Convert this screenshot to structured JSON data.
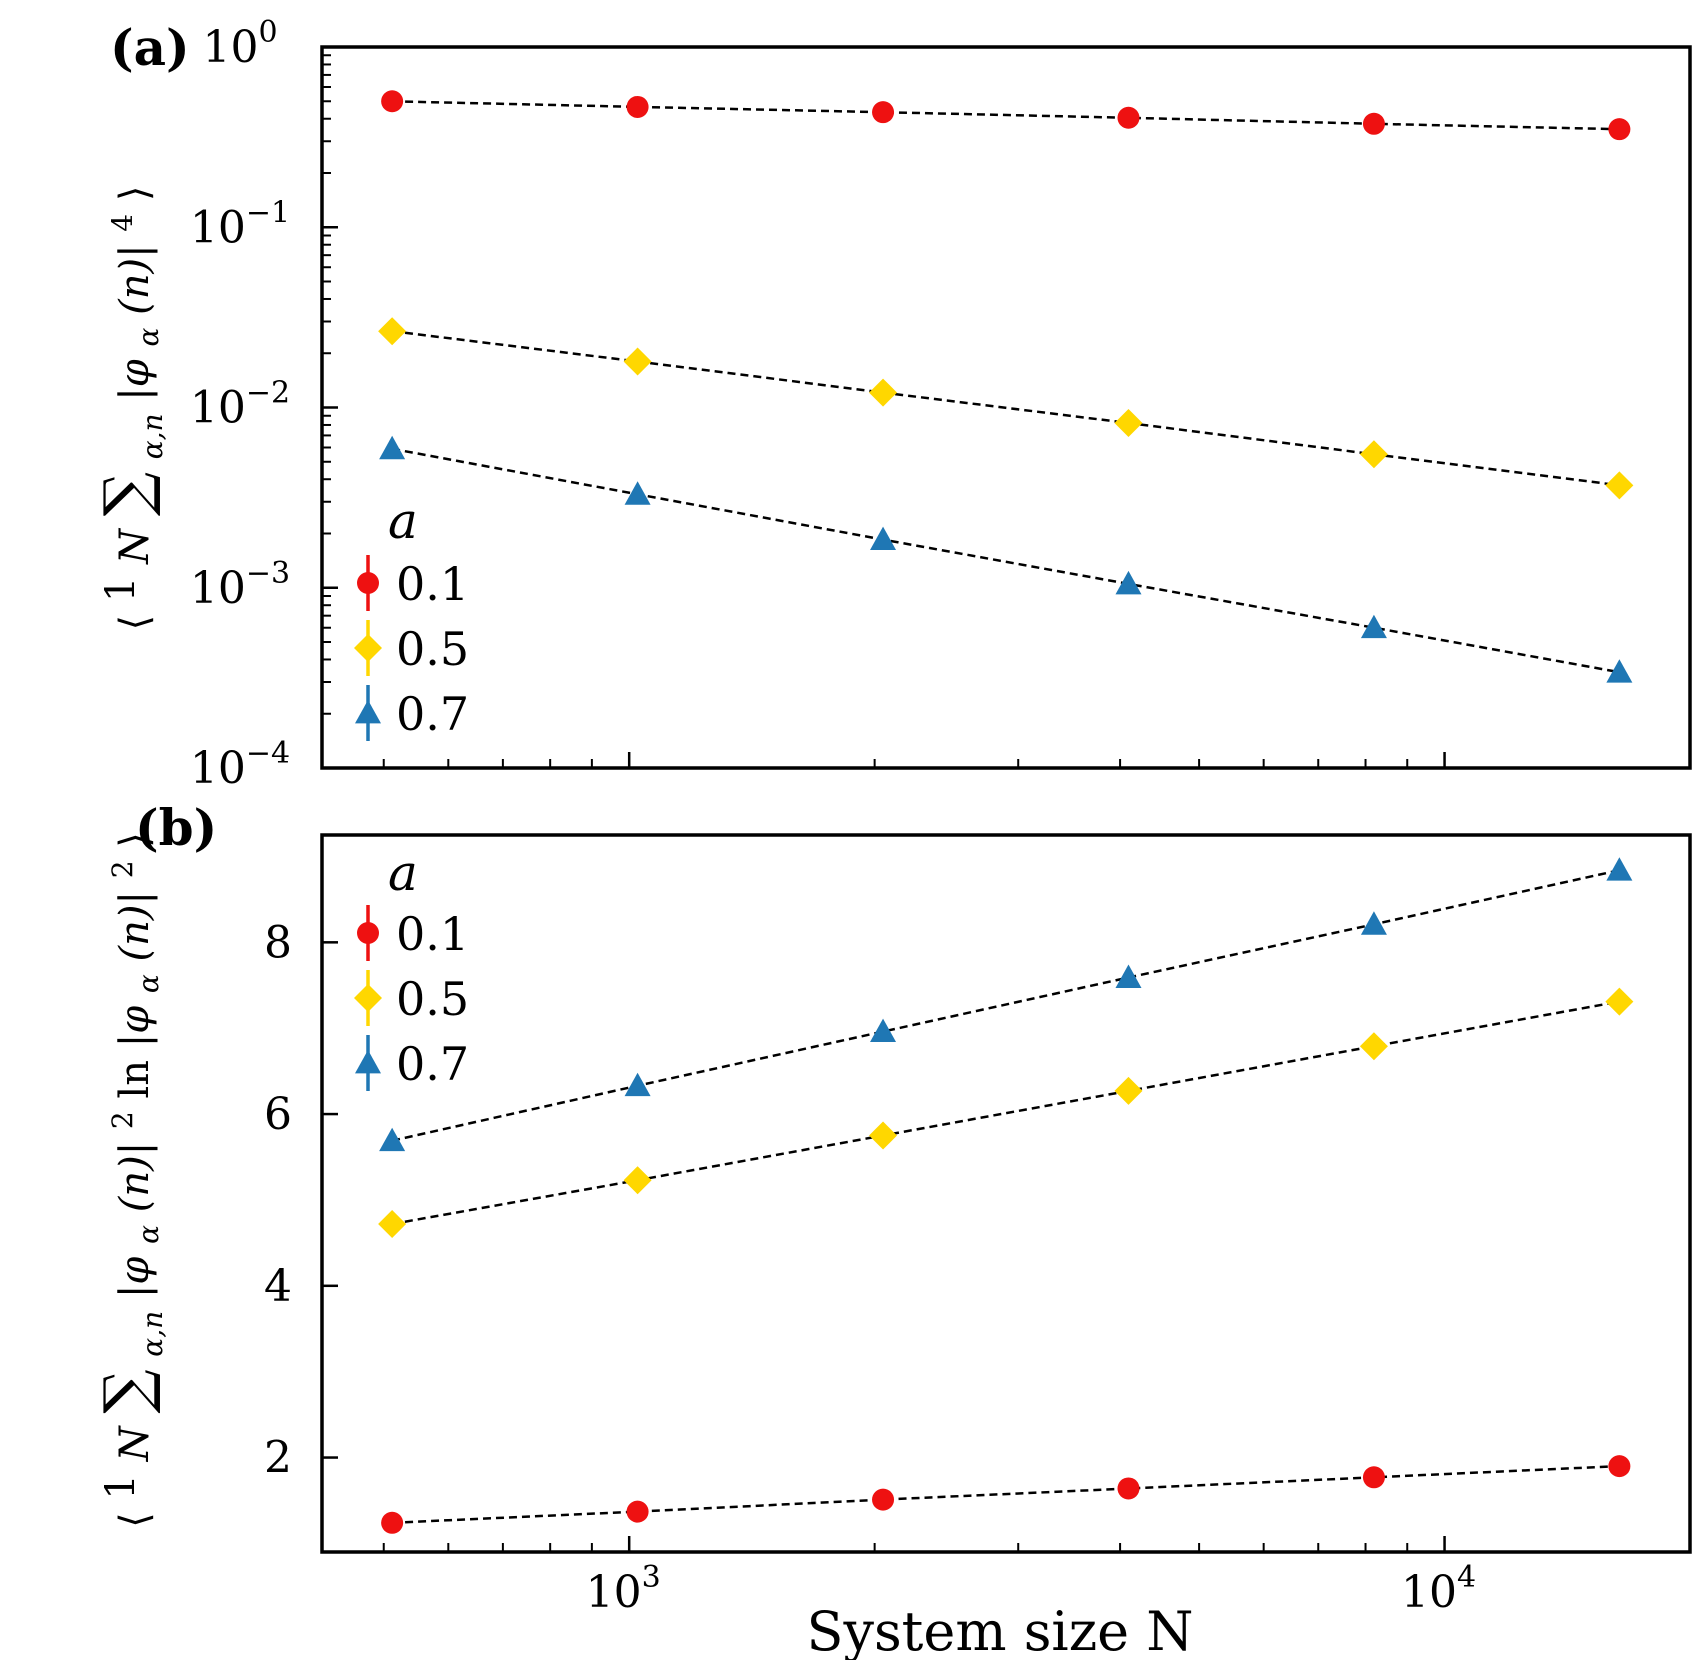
{
  "chart_data": [
    {
      "panel_label": "(a)",
      "type": "scatter",
      "xscale": "log",
      "yscale": "log",
      "x": [
        512,
        1024,
        2048,
        4096,
        8192,
        16384
      ],
      "xlim": [
        420,
        20000
      ],
      "ylim": [
        0.0001,
        1
      ],
      "xticks": [
        {
          "value": 1000,
          "base": "10",
          "exp": "3"
        },
        {
          "value": 10000,
          "base": "10",
          "exp": "4"
        }
      ],
      "yticks": [
        {
          "value": 1,
          "base": "10",
          "exp": "0"
        },
        {
          "value": 0.1,
          "base": "10",
          "exp": "−1"
        },
        {
          "value": 0.01,
          "base": "10",
          "exp": "−2"
        },
        {
          "value": 0.001,
          "base": "10",
          "exp": "−3"
        },
        {
          "value": 0.0001,
          "base": "10",
          "exp": "−4"
        }
      ],
      "ylabel": {
        "prefix": "⟨",
        "frac_num": "1",
        "frac_den": "N",
        "sum": "∑",
        "sum_sub": "α,n",
        "body": "|φ",
        "body_sub": "α",
        "body_tail": "(n)|",
        "body_sup": "4",
        "suffix": "⟩"
      },
      "legend": {
        "title": "a",
        "position": "lower-left",
        "entries": [
          "0.1",
          "0.5",
          "0.7"
        ]
      },
      "series": [
        {
          "name": "0.1",
          "marker": "circle",
          "color": "#ee1111",
          "values": [
            0.5,
            0.465,
            0.435,
            0.405,
            0.375,
            0.35
          ]
        },
        {
          "name": "0.5",
          "marker": "diamond",
          "color": "#ffd700",
          "values": [
            0.0265,
            0.018,
            0.0121,
            0.0082,
            0.0055,
            0.0037
          ]
        },
        {
          "name": "0.7",
          "marker": "triangle",
          "color": "#1f77b4",
          "values": [
            0.0059,
            0.0033,
            0.00185,
            0.00105,
            0.0006,
            0.00034
          ]
        }
      ]
    },
    {
      "panel_label": "(b)",
      "type": "scatter",
      "xscale": "log",
      "yscale": "linear",
      "x": [
        512,
        1024,
        2048,
        4096,
        8192,
        16384
      ],
      "xlim": [
        420,
        20000
      ],
      "ylim": [
        0.9,
        9.25
      ],
      "xlabel": "System size N",
      "xticks": [
        {
          "value": 1000,
          "base": "10",
          "exp": "3"
        },
        {
          "value": 10000,
          "base": "10",
          "exp": "4"
        }
      ],
      "yticks": [
        {
          "value": 2,
          "label": "2"
        },
        {
          "value": 4,
          "label": "4"
        },
        {
          "value": 6,
          "label": "6"
        },
        {
          "value": 8,
          "label": "8"
        }
      ],
      "ylabel": {
        "prefix": "⟨",
        "frac_num": "1",
        "frac_den": "N",
        "sum": "∑",
        "sum_sub": "α,n",
        "body": "|φ",
        "body_sub": "α",
        "body_tail": "(n)|",
        "body_sup": "2",
        "mid": " ln ",
        "body2": "|φ",
        "body2_sub": "α",
        "body2_tail": "(n)|",
        "body2_sup": "2",
        "suffix": "⟩"
      },
      "legend": {
        "title": "a",
        "position": "upper-left",
        "entries": [
          "0.1",
          "0.5",
          "0.7"
        ]
      },
      "series": [
        {
          "name": "0.1",
          "marker": "circle",
          "color": "#ee1111",
          "values": [
            1.24,
            1.37,
            1.51,
            1.64,
            1.77,
            1.9
          ]
        },
        {
          "name": "0.5",
          "marker": "diamond",
          "color": "#ffd700",
          "values": [
            4.72,
            5.23,
            5.75,
            6.27,
            6.79,
            7.31
          ]
        },
        {
          "name": "0.7",
          "marker": "triangle",
          "color": "#1f77b4",
          "values": [
            5.69,
            6.33,
            6.96,
            7.59,
            8.21,
            8.84
          ]
        }
      ]
    }
  ]
}
